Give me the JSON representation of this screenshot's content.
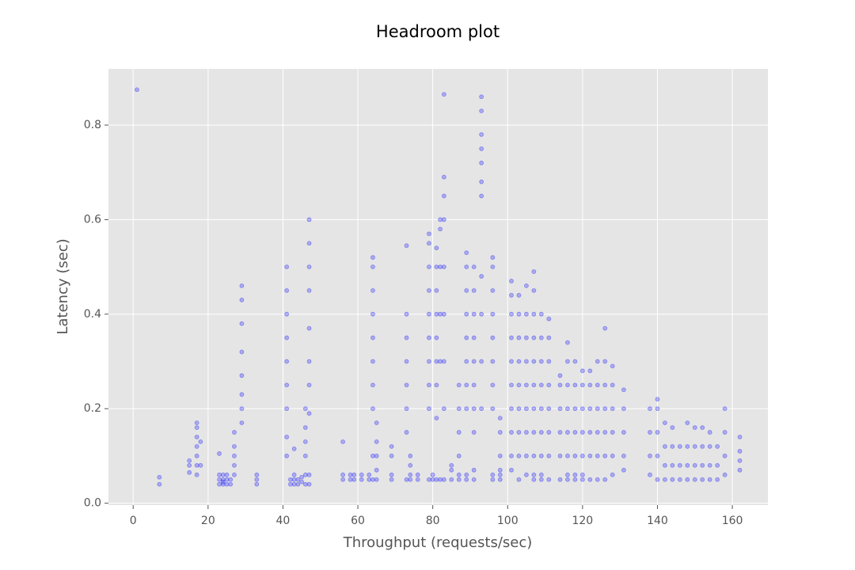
{
  "chart_data": {
    "type": "scatter",
    "title": "Headroom plot",
    "x_label": "Throughput (requests/sec)",
    "y_label": "Latency (sec)",
    "color": "#0000ff",
    "grid": true,
    "xlim": [
      -6.6,
      169.5
    ],
    "ylim": [
      -0.004,
      0.919
    ],
    "xticks": [
      0,
      20,
      40,
      60,
      80,
      100,
      120,
      140,
      160
    ],
    "yticks": [
      {
        "value": 0,
        "label": "0.0"
      },
      0.2,
      0.4,
      0.6,
      0.8
    ],
    "x": [
      1,
      7,
      7,
      15,
      15,
      15,
      17,
      17,
      17,
      17,
      17,
      17,
      17,
      18,
      18,
      23,
      23,
      23,
      23,
      24,
      24,
      24,
      24,
      25,
      25,
      25,
      26,
      26,
      27,
      27,
      27,
      27,
      27,
      29,
      29,
      29,
      29,
      29,
      29,
      29,
      29,
      33,
      33,
      33,
      41,
      41,
      41,
      41,
      41,
      41,
      41,
      41,
      41,
      42,
      42,
      43,
      43,
      43,
      43,
      44,
      44,
      45,
      45,
      46,
      46,
      46,
      46,
      46,
      46,
      47,
      47,
      47,
      47,
      47,
      47,
      47,
      47,
      47,
      47,
      56,
      56,
      56,
      58,
      58,
      59,
      59,
      61,
      61,
      63,
      63,
      64,
      64,
      64,
      64,
      64,
      64,
      64,
      64,
      64,
      64,
      65,
      65,
      65,
      65,
      65,
      69,
      69,
      69,
      69,
      73,
      73,
      73,
      73,
      73,
      73,
      73,
      73,
      74,
      74,
      74,
      74,
      76,
      76,
      79,
      79,
      79,
      79,
      79,
      79,
      79,
      79,
      79,
      79,
      80,
      80,
      81,
      81,
      81,
      81,
      81,
      81,
      81,
      81,
      81,
      82,
      82,
      82,
      82,
      82,
      82,
      83,
      83,
      83,
      83,
      83,
      83,
      83,
      83,
      83,
      85,
      85,
      85,
      87,
      87,
      87,
      87,
      87,
      87,
      89,
      89,
      89,
      89,
      89,
      89,
      89,
      89,
      89,
      89,
      91,
      91,
      91,
      91,
      91,
      91,
      91,
      91,
      91,
      91,
      93,
      93,
      93,
      93,
      93,
      93,
      93,
      93,
      93,
      93,
      93,
      96,
      96,
      96,
      96,
      96,
      96,
      96,
      96,
      96,
      96,
      98,
      98,
      98,
      98,
      98,
      98,
      101,
      101,
      101,
      101,
      101,
      101,
      101,
      101,
      101,
      101,
      103,
      103,
      103,
      103,
      103,
      103,
      103,
      103,
      103,
      105,
      105,
      105,
      105,
      105,
      105,
      105,
      105,
      105,
      107,
      107,
      107,
      107,
      107,
      107,
      107,
      107,
      107,
      107,
      107,
      109,
      109,
      109,
      109,
      109,
      109,
      109,
      109,
      109,
      111,
      111,
      111,
      111,
      111,
      111,
      111,
      111,
      114,
      114,
      114,
      114,
      114,
      114,
      116,
      116,
      116,
      116,
      116,
      116,
      116,
      116,
      118,
      118,
      118,
      118,
      118,
      118,
      118,
      120,
      120,
      120,
      120,
      120,
      120,
      120,
      122,
      122,
      122,
      122,
      122,
      122,
      124,
      124,
      124,
      124,
      124,
      124,
      126,
      126,
      126,
      126,
      126,
      126,
      126,
      128,
      128,
      128,
      128,
      128,
      128,
      131,
      131,
      131,
      131,
      131,
      138,
      138,
      138,
      138,
      140,
      140,
      140,
      140,
      140,
      142,
      142,
      142,
      142,
      144,
      144,
      144,
      144,
      146,
      146,
      146,
      148,
      148,
      148,
      148,
      150,
      150,
      150,
      150,
      152,
      152,
      152,
      152,
      154,
      154,
      154,
      154,
      156,
      156,
      156,
      158,
      158,
      158,
      158,
      162,
      162,
      162,
      162
    ],
    "values": [
      0.875,
      0.04,
      0.055,
      0.065,
      0.08,
      0.09,
      0.06,
      0.08,
      0.1,
      0.12,
      0.14,
      0.16,
      0.17,
      0.08,
      0.13,
      0.04,
      0.05,
      0.06,
      0.105,
      0.04,
      0.045,
      0.05,
      0.06,
      0.04,
      0.05,
      0.06,
      0.04,
      0.05,
      0.06,
      0.08,
      0.1,
      0.12,
      0.15,
      0.17,
      0.2,
      0.23,
      0.27,
      0.32,
      0.38,
      0.43,
      0.46,
      0.04,
      0.05,
      0.06,
      0.1,
      0.14,
      0.2,
      0.25,
      0.3,
      0.35,
      0.4,
      0.45,
      0.5,
      0.04,
      0.05,
      0.04,
      0.05,
      0.06,
      0.115,
      0.04,
      0.05,
      0.045,
      0.055,
      0.04,
      0.06,
      0.1,
      0.13,
      0.16,
      0.2,
      0.04,
      0.06,
      0.19,
      0.25,
      0.3,
      0.37,
      0.45,
      0.5,
      0.55,
      0.6,
      0.05,
      0.06,
      0.13,
      0.05,
      0.06,
      0.05,
      0.06,
      0.05,
      0.06,
      0.05,
      0.06,
      0.05,
      0.1,
      0.2,
      0.25,
      0.3,
      0.35,
      0.4,
      0.45,
      0.5,
      0.52,
      0.05,
      0.07,
      0.1,
      0.13,
      0.17,
      0.05,
      0.06,
      0.1,
      0.12,
      0.05,
      0.15,
      0.2,
      0.25,
      0.3,
      0.35,
      0.4,
      0.545,
      0.05,
      0.06,
      0.08,
      0.1,
      0.05,
      0.06,
      0.05,
      0.2,
      0.25,
      0.3,
      0.35,
      0.4,
      0.45,
      0.5,
      0.55,
      0.57,
      0.05,
      0.06,
      0.05,
      0.18,
      0.25,
      0.3,
      0.35,
      0.4,
      0.45,
      0.5,
      0.54,
      0.05,
      0.3,
      0.4,
      0.5,
      0.58,
      0.6,
      0.05,
      0.2,
      0.3,
      0.4,
      0.5,
      0.6,
      0.65,
      0.69,
      0.865,
      0.05,
      0.07,
      0.08,
      0.05,
      0.06,
      0.1,
      0.15,
      0.2,
      0.25,
      0.05,
      0.06,
      0.2,
      0.25,
      0.3,
      0.35,
      0.4,
      0.45,
      0.5,
      0.53,
      0.05,
      0.07,
      0.15,
      0.2,
      0.25,
      0.3,
      0.35,
      0.4,
      0.45,
      0.5,
      0.2,
      0.3,
      0.4,
      0.48,
      0.65,
      0.68,
      0.72,
      0.75,
      0.78,
      0.83,
      0.86,
      0.05,
      0.06,
      0.2,
      0.25,
      0.3,
      0.35,
      0.4,
      0.45,
      0.5,
      0.52,
      0.05,
      0.06,
      0.07,
      0.1,
      0.15,
      0.18,
      0.07,
      0.1,
      0.15,
      0.2,
      0.25,
      0.3,
      0.35,
      0.4,
      0.44,
      0.47,
      0.05,
      0.1,
      0.15,
      0.2,
      0.25,
      0.3,
      0.35,
      0.4,
      0.44,
      0.06,
      0.1,
      0.15,
      0.2,
      0.25,
      0.3,
      0.35,
      0.4,
      0.46,
      0.05,
      0.06,
      0.1,
      0.15,
      0.2,
      0.25,
      0.3,
      0.35,
      0.4,
      0.45,
      0.49,
      0.05,
      0.06,
      0.1,
      0.15,
      0.2,
      0.25,
      0.3,
      0.35,
      0.4,
      0.05,
      0.1,
      0.15,
      0.2,
      0.25,
      0.3,
      0.35,
      0.39,
      0.05,
      0.1,
      0.15,
      0.2,
      0.25,
      0.27,
      0.05,
      0.06,
      0.1,
      0.15,
      0.2,
      0.25,
      0.3,
      0.34,
      0.05,
      0.06,
      0.1,
      0.15,
      0.2,
      0.25,
      0.3,
      0.05,
      0.06,
      0.1,
      0.15,
      0.2,
      0.25,
      0.28,
      0.05,
      0.1,
      0.15,
      0.2,
      0.25,
      0.28,
      0.05,
      0.1,
      0.15,
      0.2,
      0.25,
      0.3,
      0.05,
      0.1,
      0.15,
      0.2,
      0.25,
      0.3,
      0.37,
      0.06,
      0.1,
      0.15,
      0.2,
      0.25,
      0.29,
      0.07,
      0.1,
      0.15,
      0.2,
      0.24,
      0.06,
      0.1,
      0.15,
      0.2,
      0.05,
      0.1,
      0.15,
      0.2,
      0.22,
      0.05,
      0.08,
      0.12,
      0.17,
      0.05,
      0.08,
      0.12,
      0.16,
      0.05,
      0.08,
      0.12,
      0.05,
      0.08,
      0.12,
      0.17,
      0.05,
      0.08,
      0.12,
      0.16,
      0.05,
      0.08,
      0.12,
      0.16,
      0.05,
      0.08,
      0.12,
      0.15,
      0.05,
      0.08,
      0.12,
      0.06,
      0.1,
      0.15,
      0.2,
      0.07,
      0.09,
      0.11,
      0.14
    ]
  }
}
